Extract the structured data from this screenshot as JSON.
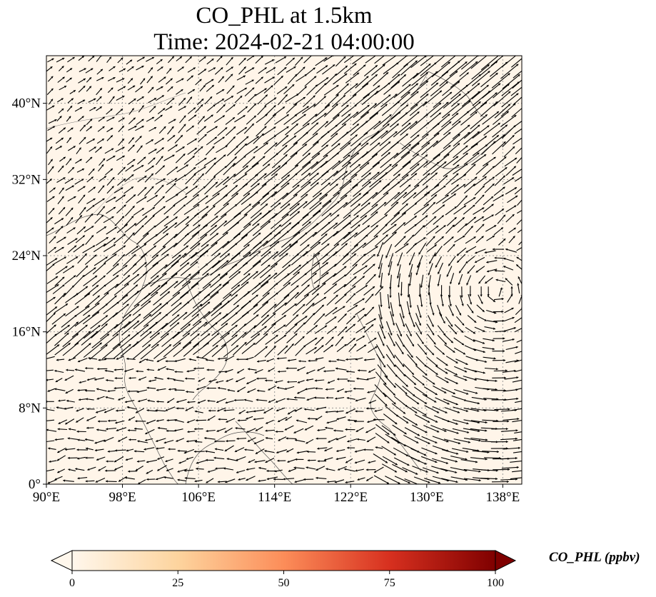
{
  "title": {
    "line1": "CO_PHL at 1.5km",
    "line2": "Time: 2024-02-21 04:00:00"
  },
  "map": {
    "lon_range": [
      90,
      140
    ],
    "lat_range": [
      0,
      45
    ],
    "gridlines": true,
    "background_color": "#fff5e9",
    "x_tick_labels": [
      "90°E",
      "98°E",
      "106°E",
      "114°E",
      "122°E",
      "130°E",
      "138°E"
    ],
    "x_tick_values": [
      90,
      98,
      106,
      114,
      122,
      130,
      138
    ],
    "y_tick_labels": [
      "0°",
      "8°N",
      "16°N",
      "24°N",
      "32°N",
      "40°N"
    ],
    "y_tick_values": [
      0,
      8,
      16,
      24,
      32,
      40
    ],
    "field": "wind vectors over CO_PHL concentration"
  },
  "colorbar": {
    "title": "CO_PHL (ppbv)",
    "tick_labels": [
      "0",
      "25",
      "50",
      "75",
      "100"
    ],
    "tick_values": [
      0,
      25,
      50,
      75,
      100
    ],
    "range": [
      0,
      100
    ],
    "extend": "both",
    "colormap": "OrRd",
    "colors": [
      "#fff7ec",
      "#fdd49e",
      "#fc8d59",
      "#d7301f",
      "#7f0000"
    ]
  }
}
